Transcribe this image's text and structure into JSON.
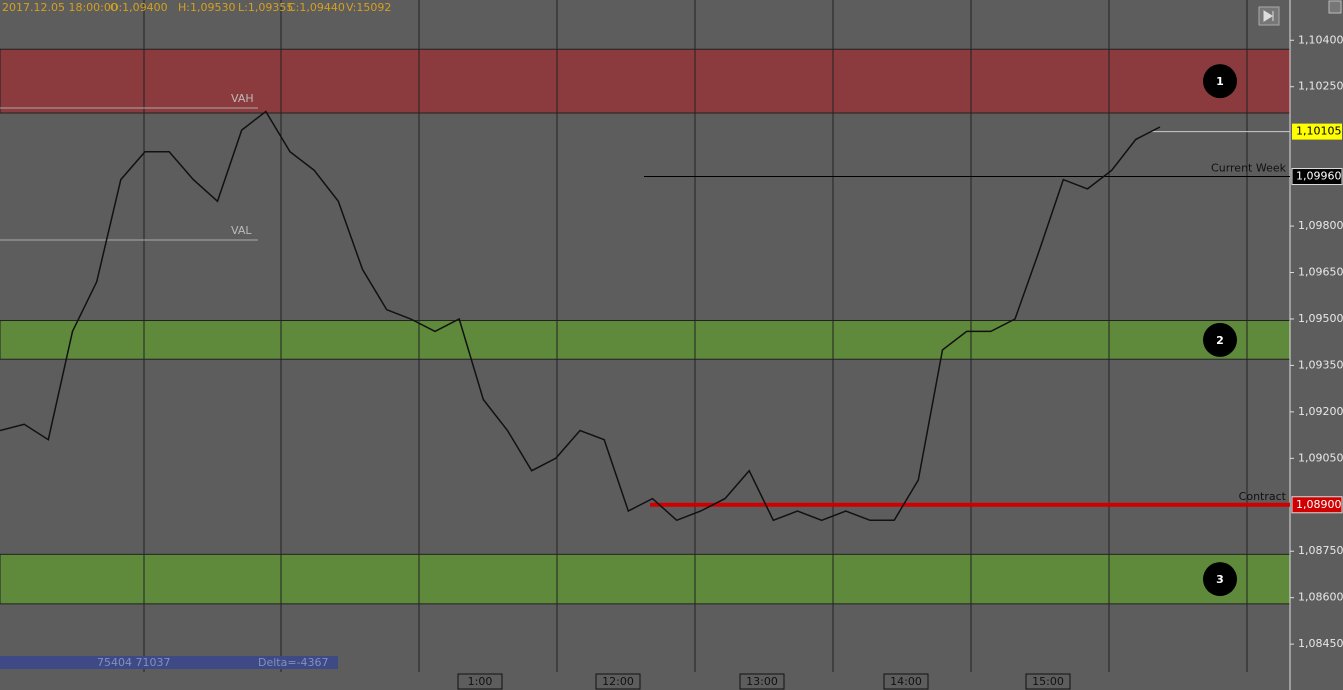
{
  "chart_data": {
    "type": "line",
    "header": [
      "2017.12.05 18:00:00",
      "O:1,09400",
      "H:1,09530",
      "L:1,09355",
      "C:1,09440",
      "V:15092"
    ],
    "ylim": [
      1.0836,
      1.1053
    ],
    "yticks": [
      {
        "value": 1.104,
        "label": "1,10400"
      },
      {
        "value": 1.1025,
        "label": "1,10250"
      },
      {
        "value": 1.098,
        "label": "1,09800"
      },
      {
        "value": 1.0965,
        "label": "1,09650"
      },
      {
        "value": 1.095,
        "label": "1,09500"
      },
      {
        "value": 1.0935,
        "label": "1,09350"
      },
      {
        "value": 1.092,
        "label": "1,09200"
      },
      {
        "value": 1.0905,
        "label": "1,09050"
      },
      {
        "value": 1.0875,
        "label": "1,08750"
      },
      {
        "value": 1.086,
        "label": "1,08600"
      },
      {
        "value": 1.0845,
        "label": "1,08450"
      }
    ],
    "zones": [
      {
        "label": "1",
        "from": 1.10165,
        "to": 1.10371,
        "color": "#8b3b3d"
      },
      {
        "label": "2",
        "from": 1.0937,
        "to": 1.09495,
        "color": "#5f8a3b"
      },
      {
        "label": "3",
        "from": 1.0858,
        "to": 1.0874,
        "color": "#5f8a3b"
      }
    ],
    "levels": [
      {
        "label": "Current Week",
        "value": 1.0996,
        "tag": "1,09960",
        "color": "#000000",
        "tagcolor": "#000000"
      },
      {
        "label": "Contract",
        "value": 1.089,
        "tag": "1,08900",
        "color": "#d00000",
        "tagcolor": "#d00000"
      }
    ],
    "last_price": {
      "value": 1.10105,
      "tag": "1,10105"
    },
    "profile_labels": [
      "VAH",
      "VAL"
    ],
    "time_labels": [
      "1:00",
      "12:00",
      "13:00",
      "14:00",
      "15:00"
    ],
    "footer": [
      "75404 71037",
      "Delta=-4367"
    ],
    "color": "#111111",
    "values": [
      1.0914,
      1.0916,
      1.0911,
      1.0946,
      1.0962,
      1.0995,
      1.1004,
      1.1004,
      1.0995,
      1.0988,
      1.1011,
      1.1017,
      1.1004,
      1.0998,
      1.0988,
      1.0966,
      1.0953,
      1.095,
      1.0946,
      1.095,
      1.0924,
      1.0914,
      1.0901,
      1.0905,
      1.0914,
      1.0911,
      1.0888,
      1.0892,
      1.0885,
      1.0888,
      1.0892,
      1.0901,
      1.0885,
      1.0888,
      1.0885,
      1.0888,
      1.0885,
      1.0885,
      1.0898,
      1.094,
      1.0946,
      1.0946,
      1.095,
      1.0972,
      1.0995,
      1.0992,
      1.0998,
      1.1008,
      1.1012
    ]
  }
}
